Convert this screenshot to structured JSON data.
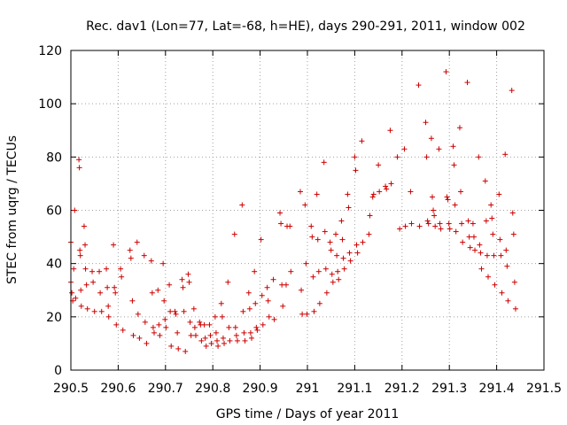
{
  "chart_data": {
    "type": "scatter",
    "title": "Rec. dav1 (Lon=77, Lat=-68, h=HE), days 290-291, 2011, window 002",
    "xlabel": "GPS time / Days of year 2011",
    "ylabel": "STEC from uqrg / TECUs",
    "xlim": [
      290.5,
      291.5
    ],
    "ylim": [
      0,
      120
    ],
    "xticks": [
      290.5,
      290.6,
      290.7,
      290.8,
      290.9,
      291,
      291.1,
      291.2,
      291.3,
      291.4,
      291.5
    ],
    "xtick_labels": [
      "290.5",
      "290.6",
      "290.7",
      "290.8",
      "290.9",
      "291",
      "291.1",
      "291.2",
      "291.3",
      "291.4",
      "291.5"
    ],
    "yticks": [
      0,
      20,
      40,
      60,
      80,
      100,
      120
    ],
    "ytick_labels": [
      "0",
      "20",
      "40",
      "60",
      "80",
      "100",
      "120"
    ],
    "grid": true,
    "marker": "+",
    "color": "#cc0000",
    "series": [
      {
        "points": [
          [
            290.5,
            48
          ],
          [
            290.5,
            33
          ],
          [
            290.502,
            29
          ],
          [
            290.504,
            26
          ],
          [
            290.506,
            38
          ],
          [
            290.508,
            60
          ],
          [
            290.51,
            27
          ],
          [
            290.517,
            79
          ],
          [
            290.518,
            76
          ],
          [
            290.519,
            45
          ],
          [
            290.52,
            43
          ],
          [
            290.521,
            30
          ],
          [
            290.522,
            24
          ],
          [
            290.528,
            54
          ],
          [
            290.53,
            47
          ],
          [
            290.531,
            38
          ],
          [
            290.533,
            32
          ],
          [
            290.535,
            23
          ],
          [
            290.545,
            37
          ],
          [
            290.547,
            33
          ],
          [
            290.55,
            22
          ],
          [
            290.56,
            37
          ],
          [
            290.562,
            29
          ],
          [
            290.565,
            22
          ],
          [
            290.575,
            38
          ],
          [
            290.577,
            31
          ],
          [
            290.579,
            24
          ],
          [
            290.58,
            20
          ],
          [
            290.59,
            47
          ],
          [
            290.592,
            31
          ],
          [
            290.594,
            29
          ],
          [
            290.596,
            17
          ],
          [
            290.605,
            38
          ],
          [
            290.607,
            35
          ],
          [
            290.61,
            15
          ],
          [
            290.625,
            45
          ],
          [
            290.627,
            42
          ],
          [
            290.63,
            26
          ],
          [
            290.632,
            13
          ],
          [
            290.64,
            48
          ],
          [
            290.642,
            21
          ],
          [
            290.645,
            12
          ],
          [
            290.655,
            43
          ],
          [
            290.657,
            18
          ],
          [
            290.66,
            10
          ],
          [
            290.67,
            41
          ],
          [
            290.672,
            29
          ],
          [
            290.674,
            16
          ],
          [
            290.676,
            14
          ],
          [
            290.684,
            30
          ],
          [
            290.686,
            17
          ],
          [
            290.688,
            13
          ],
          [
            290.695,
            40
          ],
          [
            290.697,
            26
          ],
          [
            290.699,
            19
          ],
          [
            290.701,
            16
          ],
          [
            290.708,
            32
          ],
          [
            290.71,
            22
          ],
          [
            290.712,
            9
          ],
          [
            290.72,
            22
          ],
          [
            290.722,
            21
          ],
          [
            290.725,
            14
          ],
          [
            290.727,
            8
          ],
          [
            290.735,
            34
          ],
          [
            290.737,
            31
          ],
          [
            290.739,
            22
          ],
          [
            290.742,
            7
          ],
          [
            290.748,
            36
          ],
          [
            290.75,
            33
          ],
          [
            290.752,
            18
          ],
          [
            290.754,
            13
          ],
          [
            290.76,
            23
          ],
          [
            290.762,
            16
          ],
          [
            290.764,
            13
          ],
          [
            290.772,
            18
          ],
          [
            290.774,
            17
          ],
          [
            290.776,
            11
          ],
          [
            290.782,
            17
          ],
          [
            290.784,
            12
          ],
          [
            290.786,
            9
          ],
          [
            290.793,
            17
          ],
          [
            290.795,
            13
          ],
          [
            290.797,
            10
          ],
          [
            290.805,
            20
          ],
          [
            290.807,
            14
          ],
          [
            290.809,
            11
          ],
          [
            290.811,
            9
          ],
          [
            290.818,
            25
          ],
          [
            290.82,
            20
          ],
          [
            290.822,
            12
          ],
          [
            290.824,
            10
          ],
          [
            290.832,
            33
          ],
          [
            290.834,
            16
          ],
          [
            290.836,
            11
          ],
          [
            290.846,
            51
          ],
          [
            290.848,
            16
          ],
          [
            290.85,
            13
          ],
          [
            290.852,
            11
          ],
          [
            290.862,
            62
          ],
          [
            290.864,
            22
          ],
          [
            290.866,
            14
          ],
          [
            290.868,
            11
          ],
          [
            290.876,
            29
          ],
          [
            290.878,
            23
          ],
          [
            290.88,
            14
          ],
          [
            290.882,
            12
          ],
          [
            290.888,
            37
          ],
          [
            290.89,
            25
          ],
          [
            290.892,
            16
          ],
          [
            290.894,
            15
          ],
          [
            290.902,
            49
          ],
          [
            290.904,
            28
          ],
          [
            290.906,
            17
          ],
          [
            290.915,
            31
          ],
          [
            290.917,
            26
          ],
          [
            290.919,
            20
          ],
          [
            290.928,
            34
          ],
          [
            290.93,
            19
          ],
          [
            290.942,
            59
          ],
          [
            290.944,
            55
          ],
          [
            290.946,
            32
          ],
          [
            290.948,
            24
          ],
          [
            290.955,
            32
          ],
          [
            290.957,
            54
          ],
          [
            290.963,
            54
          ],
          [
            290.965,
            37
          ],
          [
            290.985,
            67
          ],
          [
            290.987,
            30
          ],
          [
            290.989,
            21
          ],
          [
            290.995,
            62
          ],
          [
            290.997,
            40
          ],
          [
            290.999,
            21
          ],
          [
            291.008,
            54
          ],
          [
            291.01,
            50
          ],
          [
            291.012,
            35
          ],
          [
            291.014,
            22
          ],
          [
            291.02,
            66
          ],
          [
            291.022,
            49
          ],
          [
            291.024,
            37
          ],
          [
            291.026,
            25
          ],
          [
            291.035,
            78
          ],
          [
            291.037,
            52
          ],
          [
            291.039,
            38
          ],
          [
            291.041,
            29
          ],
          [
            291.048,
            48
          ],
          [
            291.05,
            45
          ],
          [
            291.052,
            36
          ],
          [
            291.054,
            33
          ],
          [
            291.06,
            51
          ],
          [
            291.062,
            43
          ],
          [
            291.064,
            37
          ],
          [
            291.066,
            34
          ],
          [
            291.072,
            56
          ],
          [
            291.074,
            49
          ],
          [
            291.076,
            42
          ],
          [
            291.078,
            38
          ],
          [
            291.085,
            66
          ],
          [
            291.087,
            61
          ],
          [
            291.089,
            44
          ],
          [
            291.091,
            41
          ],
          [
            291.1,
            80
          ],
          [
            291.102,
            75
          ],
          [
            291.104,
            47
          ],
          [
            291.106,
            44
          ],
          [
            291.115,
            86
          ],
          [
            291.117,
            48
          ],
          [
            291.13,
            51
          ],
          [
            291.132,
            58
          ],
          [
            291.138,
            65
          ],
          [
            291.14,
            66
          ],
          [
            291.15,
            77
          ],
          [
            291.152,
            67
          ],
          [
            291.165,
            69
          ],
          [
            291.167,
            68
          ],
          [
            291.175,
            90
          ],
          [
            291.177,
            70
          ],
          [
            291.19,
            80
          ],
          [
            291.195,
            53
          ],
          [
            291.205,
            83
          ],
          [
            291.207,
            54
          ],
          [
            291.218,
            67
          ],
          [
            291.22,
            55
          ],
          [
            291.235,
            107
          ],
          [
            291.237,
            54
          ],
          [
            291.25,
            93
          ],
          [
            291.252,
            80
          ],
          [
            291.254,
            56
          ],
          [
            291.256,
            55
          ],
          [
            291.262,
            87
          ],
          [
            291.264,
            65
          ],
          [
            291.266,
            60
          ],
          [
            291.268,
            58
          ],
          [
            291.27,
            54
          ],
          [
            291.278,
            83
          ],
          [
            291.28,
            55
          ],
          [
            291.282,
            53
          ],
          [
            291.293,
            112
          ],
          [
            291.295,
            65
          ],
          [
            291.297,
            64
          ],
          [
            291.299,
            55
          ],
          [
            291.301,
            53
          ],
          [
            291.308,
            84
          ],
          [
            291.31,
            77
          ],
          [
            291.312,
            62
          ],
          [
            291.314,
            52
          ],
          [
            291.322,
            91
          ],
          [
            291.324,
            67
          ],
          [
            291.326,
            55
          ],
          [
            291.328,
            48
          ],
          [
            291.338,
            108
          ],
          [
            291.34,
            56
          ],
          [
            291.342,
            50
          ],
          [
            291.344,
            46
          ],
          [
            291.35,
            55
          ],
          [
            291.352,
            50
          ],
          [
            291.354,
            45
          ],
          [
            291.362,
            80
          ],
          [
            291.364,
            47
          ],
          [
            291.366,
            44
          ],
          [
            291.368,
            38
          ],
          [
            291.376,
            71
          ],
          [
            291.378,
            56
          ],
          [
            291.38,
            43
          ],
          [
            291.382,
            35
          ],
          [
            291.388,
            62
          ],
          [
            291.39,
            57
          ],
          [
            291.392,
            51
          ],
          [
            291.394,
            43
          ],
          [
            291.396,
            32
          ],
          [
            291.405,
            66
          ],
          [
            291.407,
            49
          ],
          [
            291.409,
            43
          ],
          [
            291.411,
            29
          ],
          [
            291.418,
            81
          ],
          [
            291.42,
            45
          ],
          [
            291.422,
            39
          ],
          [
            291.424,
            26
          ],
          [
            291.432,
            105
          ],
          [
            291.434,
            59
          ],
          [
            291.436,
            51
          ],
          [
            291.438,
            33
          ],
          [
            291.44,
            23
          ]
        ]
      }
    ]
  }
}
